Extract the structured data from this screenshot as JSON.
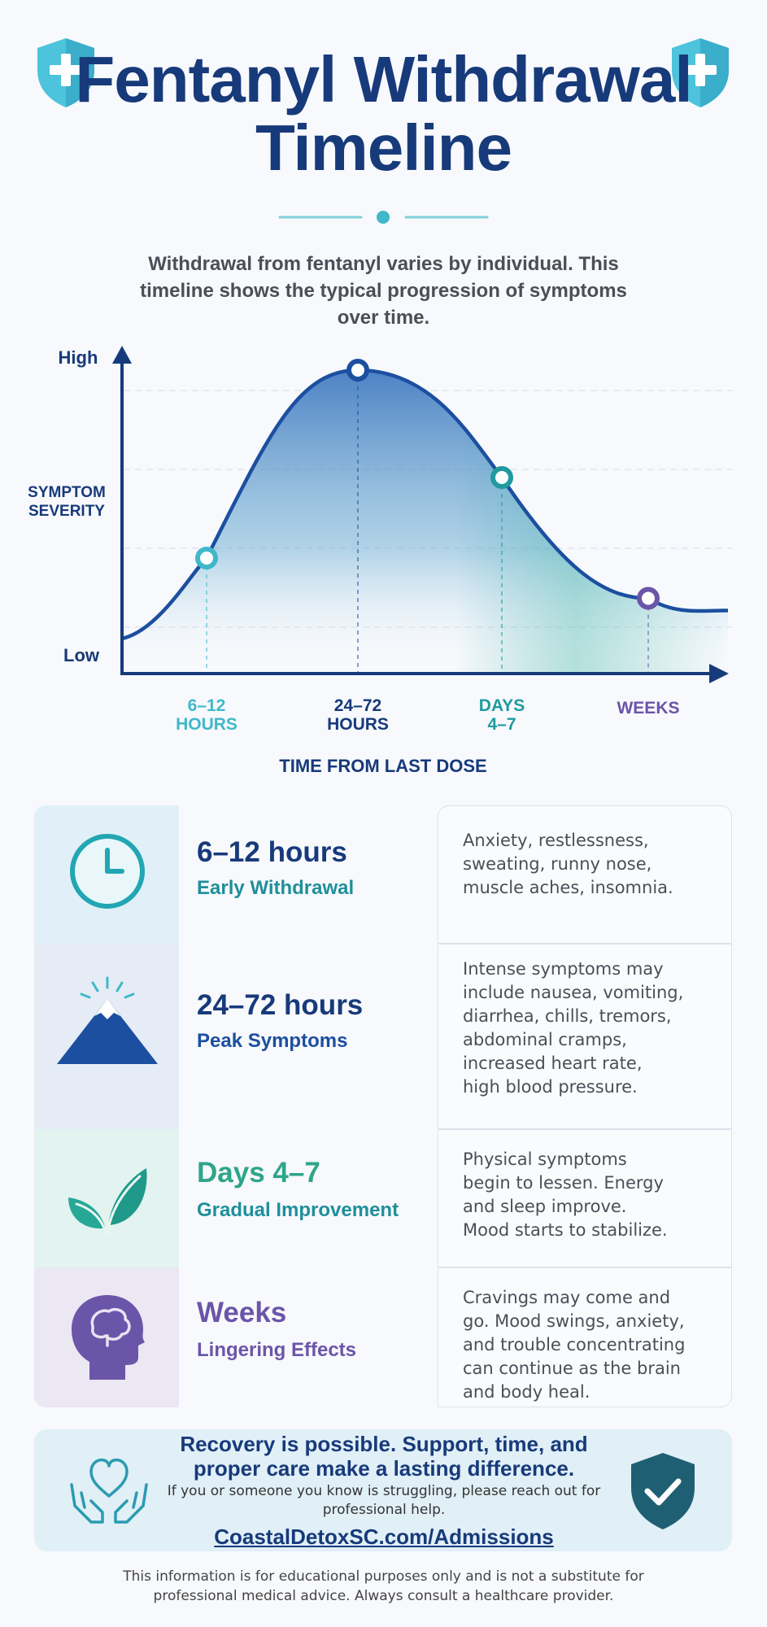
{
  "header": {
    "title": "Fentanyl Withdrawal Timeline",
    "intro": "Withdrawal from fentanyl varies by individual. This timeline shows the typical progression of symptoms over time."
  },
  "colors": {
    "navy": "#173a7a",
    "blue": "#1c4fa0",
    "teal": "#1f9a9f",
    "cyan": "#3fb8c9",
    "green": "#2ea58a",
    "purple": "#6b55a8"
  },
  "chart_data": {
    "type": "area",
    "ylabel": "SYMPTOM SEVERITY",
    "y_ticks": [
      "High",
      "Low"
    ],
    "xlabel": "TIME FROM LAST DOSE",
    "categories": [
      "6–12 HOURS",
      "24–72 HOURS",
      "DAYS 4–7",
      "WEEKS"
    ],
    "values": [
      0.3,
      1.0,
      0.6,
      0.15
    ],
    "y_scale": "qualitative (Low to High)",
    "grid": true
  },
  "stages": [
    {
      "title": "6–12 hours",
      "subtitle": "Early Withdrawal",
      "icon": "clock-icon",
      "lines": [
        "Anxiety, restlessness,",
        "sweating, runny nose,",
        "muscle aches, insomnia."
      ]
    },
    {
      "title": "24–72 hours",
      "subtitle": "Peak Symptoms",
      "icon": "mountain-icon",
      "lines": [
        "Intense symptoms may",
        "include nausea, vomiting,",
        "diarrhea, chills, tremors,",
        "abdominal cramps,",
        "increased heart rate,",
        "high blood pressure."
      ]
    },
    {
      "title": "Days 4–7",
      "subtitle": "Gradual Improvement",
      "icon": "leaf-icon",
      "lines": [
        "Physical symptoms",
        "begin to lessen. Energy",
        "and sleep improve.",
        "Mood starts to stabilize."
      ]
    },
    {
      "title": "Weeks",
      "subtitle": "Lingering Effects",
      "icon": "brain-head-icon",
      "lines": [
        "Cravings may come and",
        "go. Mood swings, anxiety,",
        "and trouble concentrating",
        "can continue as the brain",
        "and body heal."
      ]
    }
  ],
  "cta": {
    "headline": "Recovery is possible. Support, time, and proper care make a lasting difference.",
    "body": "If you or someone you know is struggling, please reach out for professional help.",
    "link": "CoastalDetoxSC.com/Admissions"
  },
  "disclaimer": "This information is for educational purposes only and is not a substitute for professional medical advice. Always consult a healthcare provider."
}
